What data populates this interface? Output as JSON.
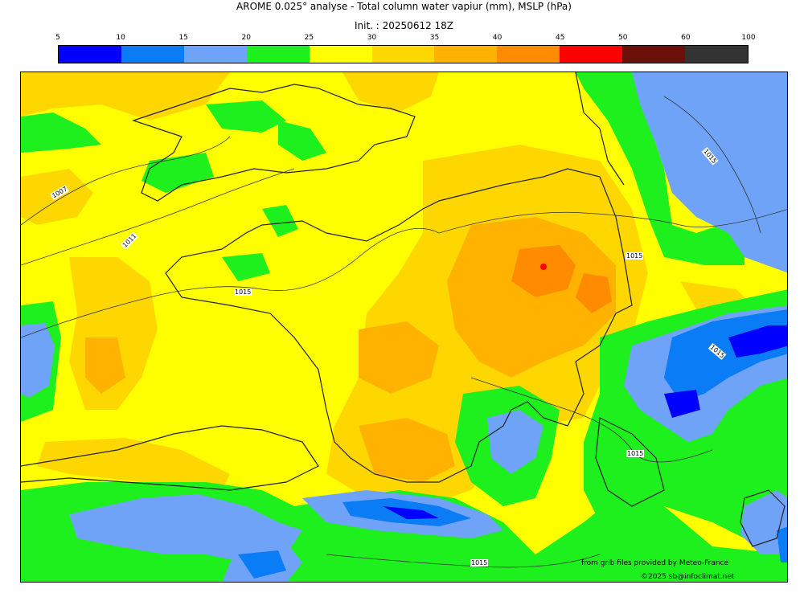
{
  "title": "AROME 0.025° analyse - Total column water vapiur (mm), MSLP (hPa)",
  "init": "Init. : 20250612 18Z",
  "colorbar": {
    "ticks": [
      "5",
      "10",
      "15",
      "20",
      "25",
      "30",
      "35",
      "40",
      "45",
      "50",
      "60",
      "100"
    ],
    "colors": [
      "#0000ff",
      "#0a7cf5",
      "#6fa3f7",
      "#1ef01e",
      "#ffff00",
      "#ffd700",
      "#ffb300",
      "#ff8c00",
      "#ff0000",
      "#6b1008",
      "#333333"
    ]
  },
  "isobar_labels": [
    "1007",
    "1011",
    "1015",
    "1015",
    "1015",
    "1015",
    "1015",
    "1015"
  ],
  "credits": {
    "source": "from grib files provided by Meteo-France",
    "copyright": "©2025 sb@infoclimat.net"
  }
}
